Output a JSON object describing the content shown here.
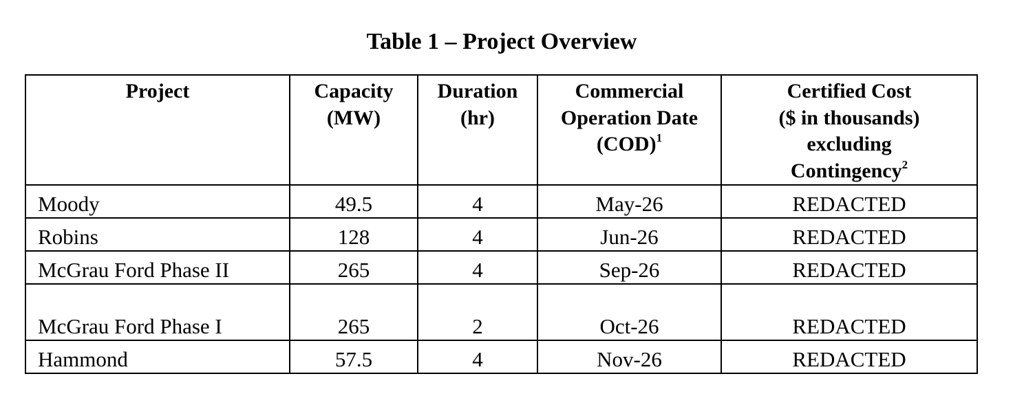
{
  "title": "Table 1 – Project Overview",
  "table": {
    "headers": [
      {
        "lines": [
          "Project"
        ],
        "footnote": ""
      },
      {
        "lines": [
          "Capacity",
          "(MW)"
        ],
        "footnote": ""
      },
      {
        "lines": [
          "Duration",
          "(hr)"
        ],
        "footnote": ""
      },
      {
        "lines": [
          "Commercial",
          "Operation Date",
          "(COD)"
        ],
        "footnote": "1"
      },
      {
        "lines": [
          "Certified Cost",
          "($ in thousands)",
          "excluding",
          "Contingency"
        ],
        "footnote": "2"
      }
    ],
    "rows": [
      {
        "project": "Moody",
        "capacity": "49.5",
        "duration": "4",
        "cod": "May-26",
        "cost": "REDACTED"
      },
      {
        "project": "Robins",
        "capacity": "128",
        "duration": "4",
        "cod": "Jun-26",
        "cost": "REDACTED"
      },
      {
        "project": "McGrau Ford Phase II",
        "capacity": "265",
        "duration": "4",
        "cod": "Sep-26",
        "cost": "REDACTED"
      },
      {
        "project": "McGrau Ford Phase I",
        "capacity": "265",
        "duration": "2",
        "cod": "Oct-26",
        "cost": "REDACTED"
      },
      {
        "project": "Hammond",
        "capacity": "57.5",
        "duration": "4",
        "cod": "Nov-26",
        "cost": "REDACTED"
      }
    ]
  }
}
